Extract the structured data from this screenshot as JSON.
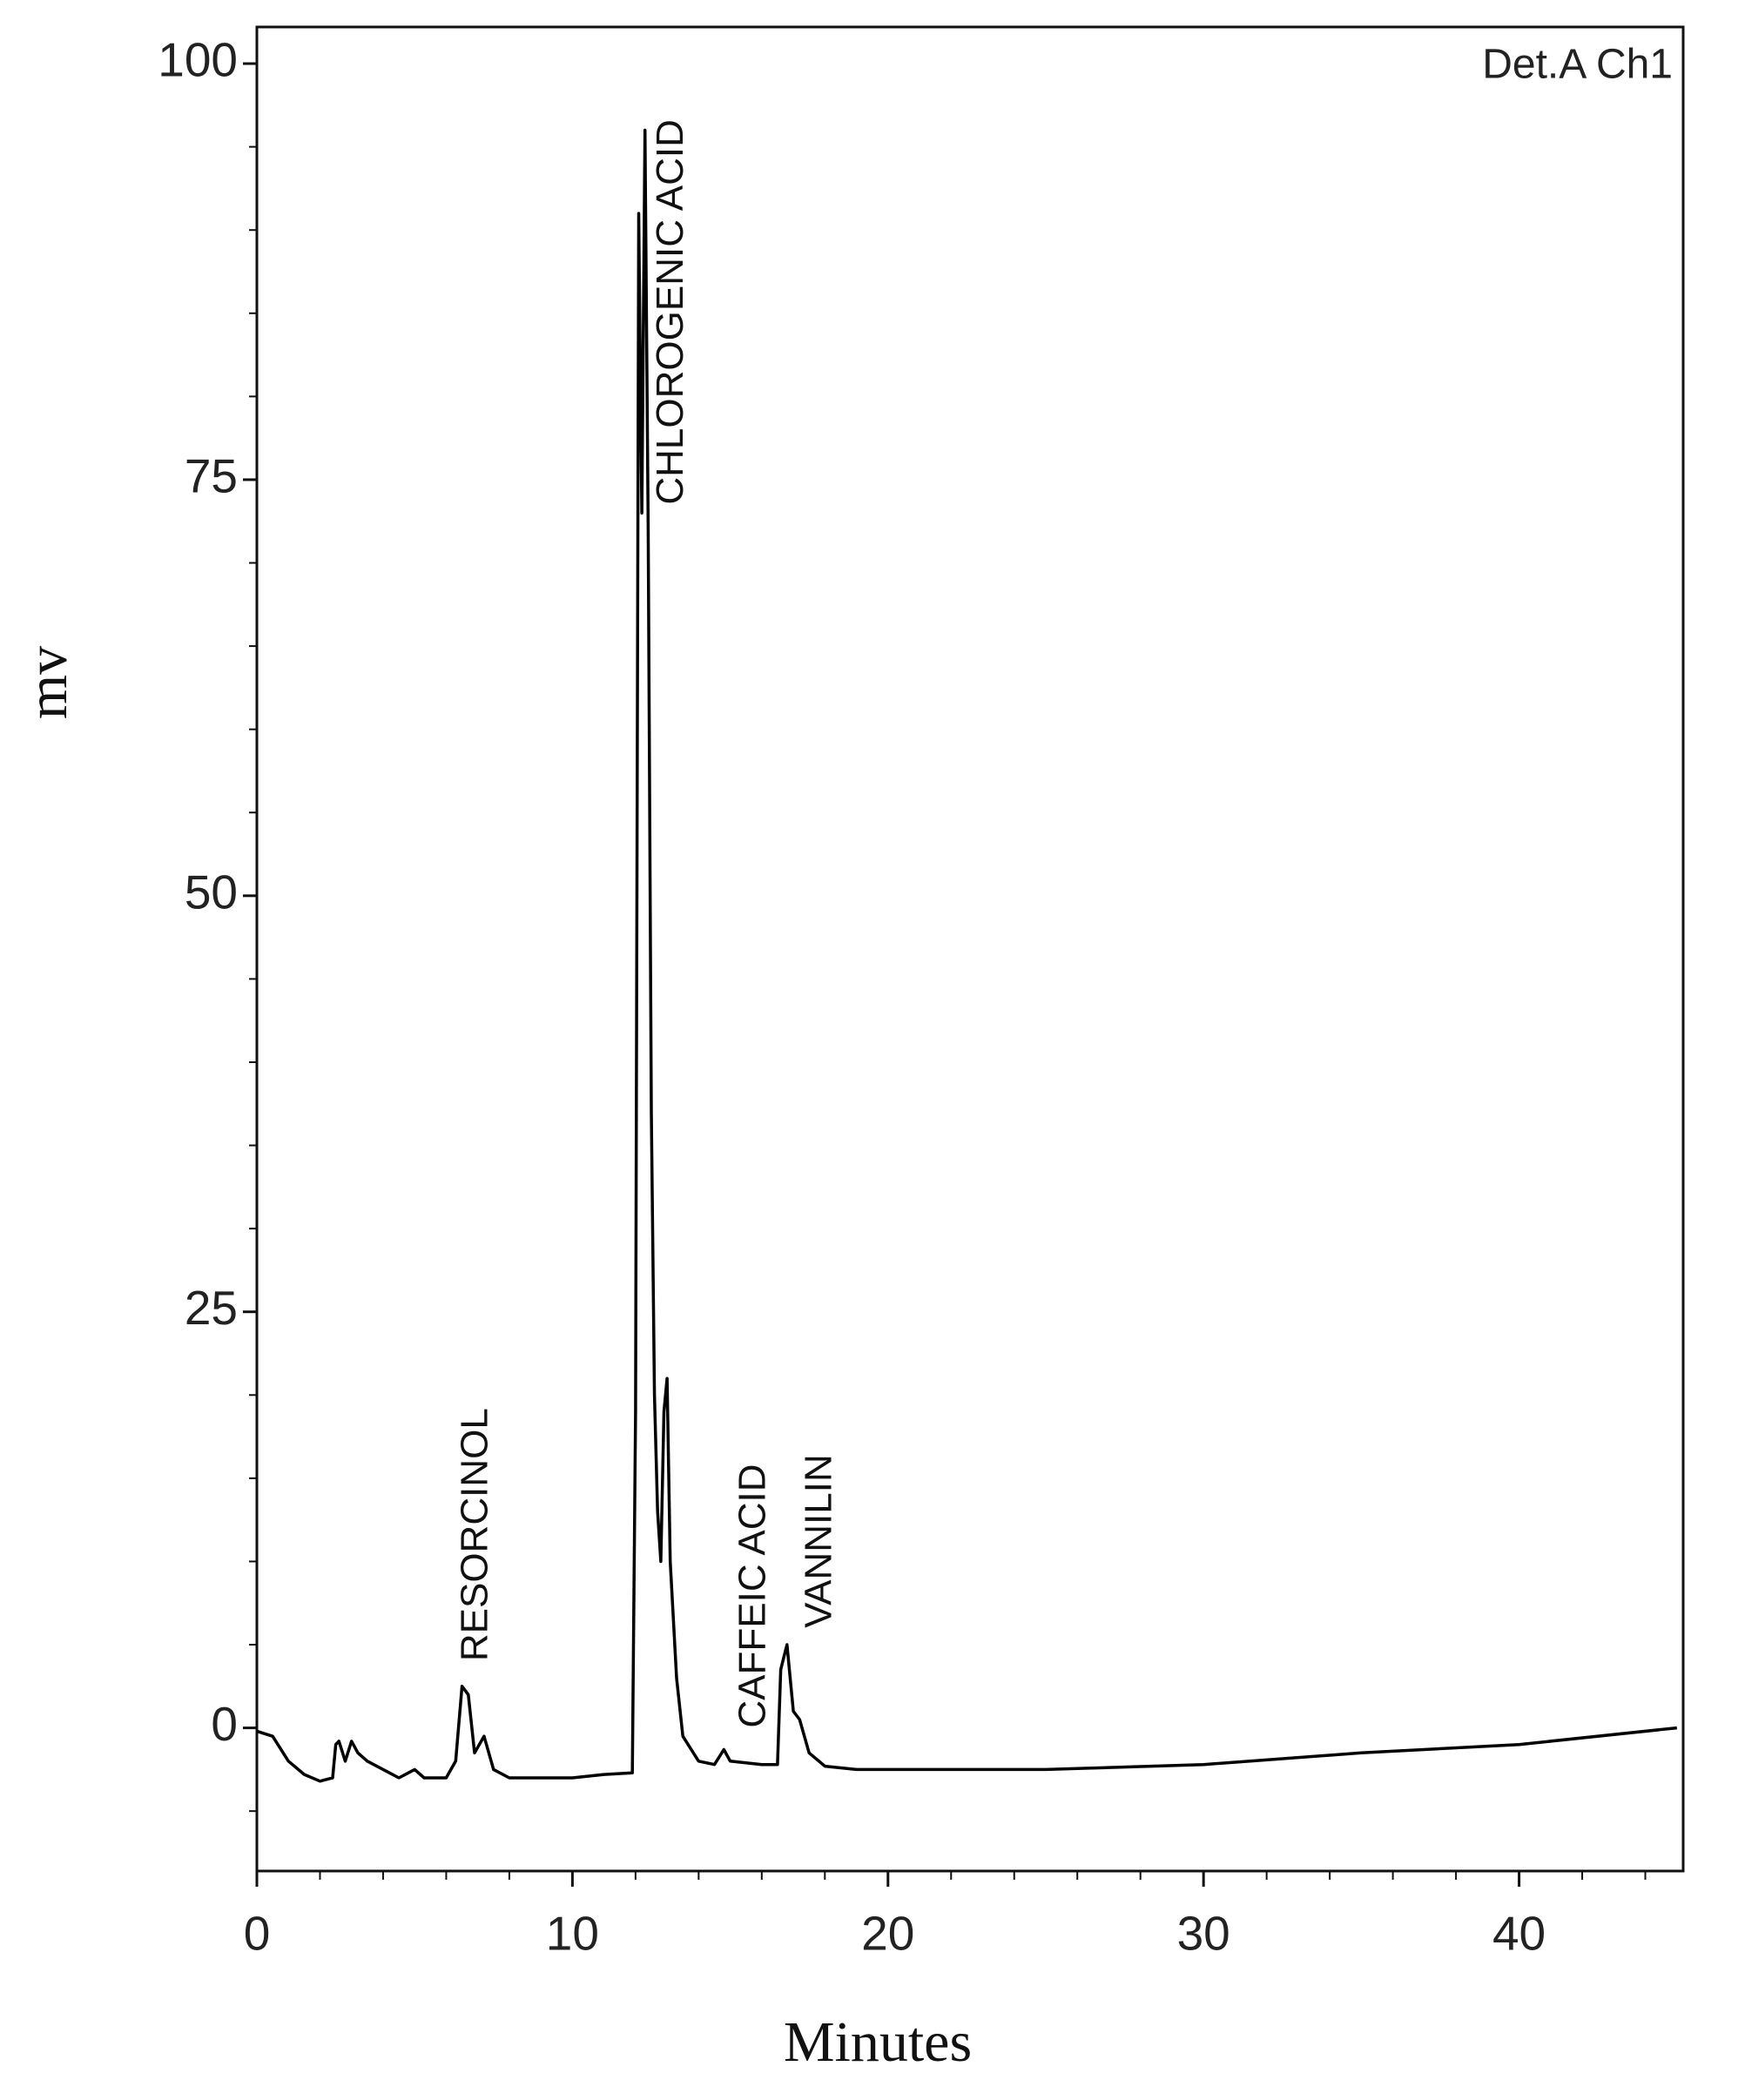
{
  "chart_data": {
    "type": "line",
    "detector_label": "Det.A Ch1",
    "x_label": "Minutes",
    "y_label": "mv",
    "series": [
      {
        "color": "#000000",
        "x": [
          0,
          0.5,
          1,
          1.5,
          2,
          2.4,
          2.5,
          2.6,
          2.8,
          3.0,
          3.2,
          3.5,
          4,
          4.5,
          5,
          5.3,
          6,
          6.3,
          6.5,
          6.7,
          6.9,
          7.2,
          7.5,
          8,
          9,
          10,
          11,
          11.9,
          12.0,
          12.1,
          12.2,
          12.3,
          12.4,
          12.5,
          12.6,
          12.7,
          12.8,
          12.9,
          13.0,
          13.1,
          13.3,
          13.5,
          14,
          14.5,
          14.8,
          15,
          16,
          16.5,
          16.6,
          16.8,
          17,
          17.2,
          17.5,
          18,
          19,
          20,
          25,
          30,
          35,
          40,
          45
        ],
        "values": [
          -0.2,
          -0.5,
          -2,
          -2.8,
          -3.2,
          -3,
          -1,
          -0.8,
          -2,
          -0.8,
          -1.5,
          -2,
          -2.5,
          -3,
          -2.5,
          -3,
          -3,
          -2,
          2.5,
          2,
          -1.5,
          -0.5,
          -2.5,
          -3,
          -3,
          -3,
          -2.8,
          -2.7,
          19,
          91,
          73,
          96,
          72,
          37,
          20,
          13,
          10,
          19,
          21,
          10,
          3,
          -0.5,
          -2,
          -2.2,
          -1.3,
          -2,
          -2.2,
          -2.2,
          3.5,
          5,
          1,
          0.5,
          -1.5,
          -2.3,
          -2.5,
          -2.5,
          -2.5,
          -2.2,
          -1.5,
          -1,
          0
        ]
      }
    ],
    "annotations": [
      {
        "text": "RESORCINOL",
        "x": 7.3,
        "y": 4
      },
      {
        "text": "CHLOROGENIC ACID",
        "x": 13.5,
        "y": 73.5
      },
      {
        "text": "CAFFEIC ACID",
        "x": 16.1,
        "y": 0
      },
      {
        "text": "VANNILIN",
        "x": 18.2,
        "y": 6
      }
    ],
    "xlim": [
      0,
      45.2
    ],
    "ylim": [
      -8.6,
      102.2
    ],
    "xticks": [
      0,
      10,
      20,
      30,
      40
    ],
    "yticks": [
      0,
      25,
      50,
      75,
      100
    ],
    "xminorticks": [
      2,
      4,
      6,
      8,
      12,
      14,
      16,
      18,
      22,
      24,
      26,
      28,
      32,
      34,
      36,
      38,
      42,
      44
    ],
    "yminorticks": [
      -5,
      5,
      10,
      15,
      20,
      30,
      35,
      40,
      45,
      55,
      60,
      65,
      70,
      80,
      85,
      90,
      95
    ]
  }
}
